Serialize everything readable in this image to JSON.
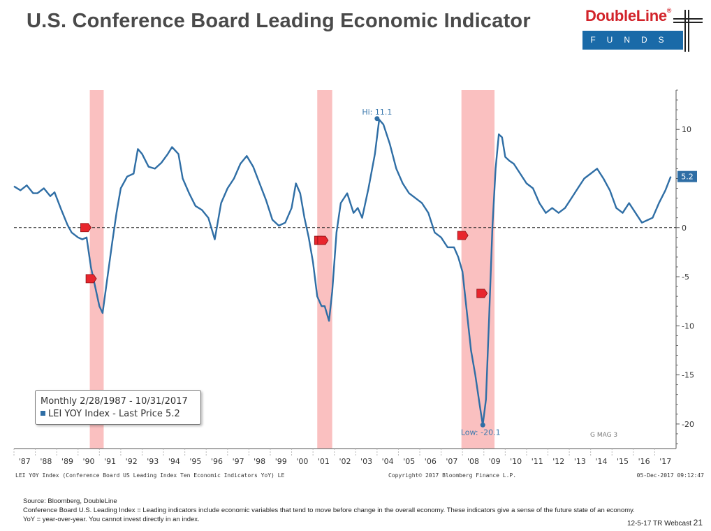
{
  "page": {
    "title": "U.S. Conference Board Leading Economic Indicator",
    "logo": {
      "brand": "DoubleLine",
      "reg": "®",
      "sub": "FUNDS"
    },
    "footer": {
      "source": "Source: Bloomberg, DoubleLine",
      "note": "Conference Board U.S. Leading Index = Leading indicators include economic variables that tend to move before change in the overall economy. These indicators give a sense of the future state of an economy. YoY = year-over-year. You cannot invest directly in an index."
    },
    "page_label": "12-5-17 TR Webcast",
    "page_number": "21"
  },
  "chart_data": {
    "type": "line",
    "title": "",
    "legend": {
      "line1": "Monthly 2/28/1987 - 10/31/2017",
      "line2": "LEI YOY Index - Last Price 5.2",
      "placement": "bottom-left"
    },
    "x_tick_labels": [
      "'87",
      "'88",
      "'89",
      "'90",
      "'91",
      "'92",
      "'93",
      "'94",
      "'95",
      "'96",
      "'97",
      "'98",
      "'99",
      "'00",
      "'01",
      "'02",
      "'03",
      "'04",
      "'05",
      "'06",
      "'07",
      "'08",
      "'09",
      "'10",
      "'11",
      "'12",
      "'13",
      "'14",
      "'15",
      "'16",
      "'17"
    ],
    "y_ticks": [
      10,
      5,
      0,
      -5,
      -10,
      -15,
      -20
    ],
    "y_tick_labels": [
      "10",
      "5",
      "0",
      "-5",
      "-10",
      "-15",
      "-20"
    ],
    "ylim": [
      -22.5,
      14
    ],
    "xlim": [
      1987.0,
      2018.0
    ],
    "zero_line": "dashed",
    "series": [
      {
        "name": "LEI YOY Index",
        "color": "#2f6ea5",
        "x": [
          1987.0,
          1987.3,
          1987.6,
          1987.9,
          1988.1,
          1988.4,
          1988.7,
          1988.9,
          1989.2,
          1989.5,
          1989.7,
          1990.0,
          1990.2,
          1990.4,
          1990.6,
          1990.8,
          1991.0,
          1991.15,
          1991.35,
          1991.6,
          1991.8,
          1992.0,
          1992.3,
          1992.6,
          1992.8,
          1993.0,
          1993.3,
          1993.6,
          1993.9,
          1994.2,
          1994.4,
          1994.7,
          1994.9,
          1995.2,
          1995.5,
          1995.8,
          1996.1,
          1996.4,
          1996.7,
          1997.0,
          1997.3,
          1997.6,
          1997.9,
          1998.2,
          1998.5,
          1998.8,
          1999.1,
          1999.4,
          1999.7,
          2000.0,
          2000.2,
          2000.4,
          2000.6,
          2000.8,
          2001.0,
          2001.2,
          2001.4,
          2001.55,
          2001.75,
          2001.9,
          2002.1,
          2002.3,
          2002.6,
          2002.9,
          2003.1,
          2003.3,
          2003.6,
          2003.9,
          2004.1,
          2004.3,
          2004.6,
          2004.9,
          2005.2,
          2005.5,
          2005.8,
          2006.1,
          2006.4,
          2006.7,
          2007.0,
          2007.3,
          2007.6,
          2007.8,
          2008.0,
          2008.2,
          2008.4,
          2008.6,
          2008.8,
          2008.95,
          2009.1,
          2009.25,
          2009.4,
          2009.55,
          2009.7,
          2009.85,
          2010.0,
          2010.2,
          2010.4,
          2010.7,
          2011.0,
          2011.3,
          2011.6,
          2011.9,
          2012.2,
          2012.5,
          2012.8,
          2013.1,
          2013.4,
          2013.7,
          2014.0,
          2014.3,
          2014.6,
          2014.9,
          2015.2,
          2015.5,
          2015.8,
          2016.1,
          2016.4,
          2016.7,
          2016.9,
          2017.2,
          2017.5,
          2017.75
        ],
        "y": [
          4.2,
          3.8,
          4.3,
          3.5,
          3.5,
          4.0,
          3.2,
          3.6,
          1.9,
          0.3,
          -0.5,
          -1.0,
          -1.2,
          -1.0,
          -4.0,
          -6.0,
          -8.0,
          -8.7,
          -5.5,
          -1.5,
          1.5,
          4.0,
          5.2,
          5.5,
          8.0,
          7.5,
          6.2,
          6.0,
          6.6,
          7.5,
          8.2,
          7.5,
          5.0,
          3.5,
          2.2,
          1.8,
          1.0,
          -1.2,
          2.5,
          4.0,
          5.0,
          6.5,
          7.3,
          6.2,
          4.5,
          2.8,
          0.8,
          0.2,
          0.5,
          2.0,
          4.5,
          3.5,
          1.0,
          -1.0,
          -3.5,
          -7.0,
          -8.0,
          -8.0,
          -9.5,
          -6.5,
          -0.5,
          2.5,
          3.5,
          1.5,
          2.0,
          1.0,
          4.0,
          7.5,
          11.0,
          10.5,
          8.5,
          6.0,
          4.5,
          3.5,
          3.0,
          2.5,
          1.5,
          -0.5,
          -1.0,
          -2.0,
          -2.0,
          -3.0,
          -4.5,
          -8.5,
          -12.5,
          -15.0,
          -18.0,
          -20.1,
          -17.5,
          -9.0,
          0.0,
          6.0,
          9.5,
          9.2,
          7.2,
          6.8,
          6.5,
          5.5,
          4.5,
          4.0,
          2.5,
          1.5,
          2.0,
          1.5,
          2.0,
          3.0,
          4.0,
          5.0,
          5.5,
          6.0,
          5.0,
          3.8,
          2.0,
          1.5,
          2.5,
          1.5,
          0.5,
          0.8,
          1.0,
          2.5,
          3.8,
          5.2
        ],
        "last_price": 5.2
      }
    ],
    "annotations": [
      {
        "text": "Hi: 11.1",
        "x": 2004.0,
        "y": 11.1
      },
      {
        "text": "Low: -20.1",
        "x": 2008.95,
        "y": -20.1
      },
      {
        "text": "G MAG 3"
      }
    ],
    "recessions": [
      {
        "start": 1990.55,
        "end": 1991.2
      },
      {
        "start": 2001.2,
        "end": 2001.9
      },
      {
        "start": 2007.95,
        "end": 2009.5
      }
    ],
    "event_markers": [
      {
        "x": 1990.35,
        "y": 0.0
      },
      {
        "x": 1990.6,
        "y": -5.2
      },
      {
        "x": 2001.3,
        "y": -1.3
      },
      {
        "x": 2001.45,
        "y": -1.3
      },
      {
        "x": 2008.0,
        "y": -0.8
      },
      {
        "x": 2008.9,
        "y": -6.7
      }
    ],
    "bottom_texts": {
      "left": "LEI YOY Index (Conference Board US Leading Index Ten Economic Indicators YoY) LE",
      "center": "Copyright© 2017 Bloomberg Finance L.P.",
      "right": "05-Dec-2017 09:12:47"
    },
    "colors": {
      "line": "#2f6ea5",
      "recession": "#f9b5b5",
      "marker": "#e8262d",
      "axis": "#555555"
    }
  }
}
